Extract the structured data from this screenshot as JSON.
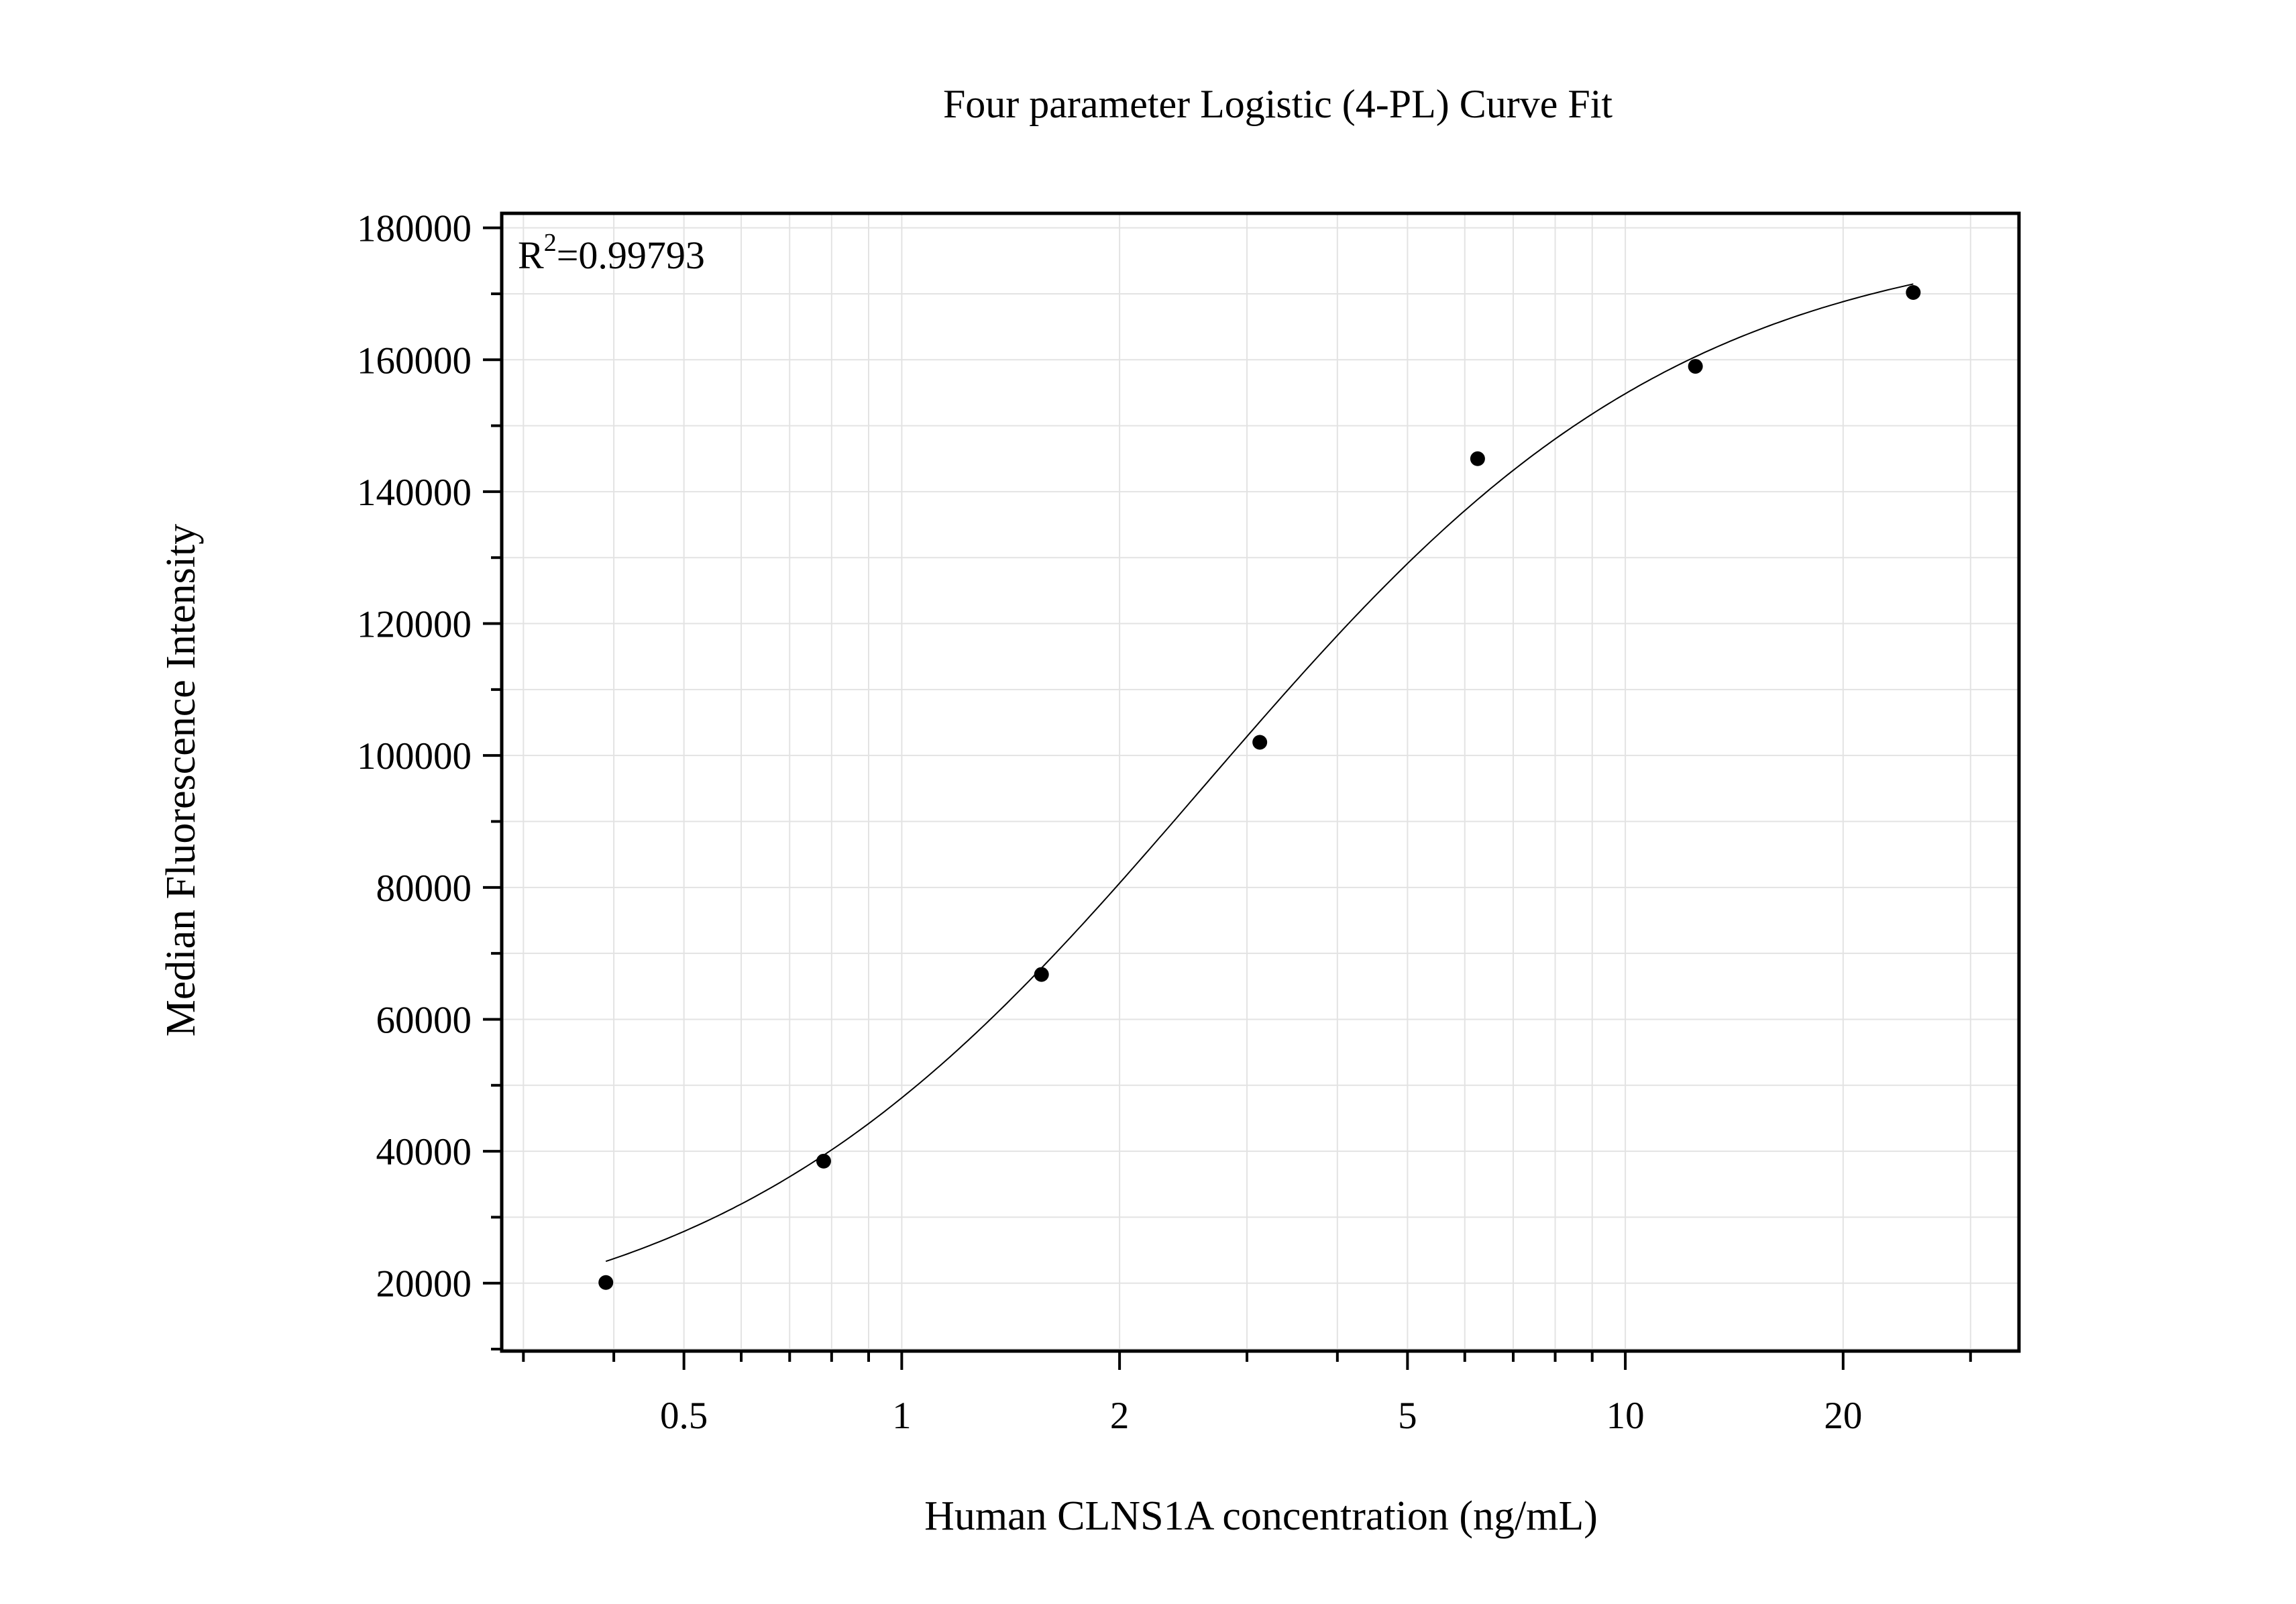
{
  "chart_data": {
    "type": "scatter",
    "title": "Four parameter Logistic (4-PL) Curve Fit",
    "xlabel": "Human CLNS1A concentration (ng/mL)",
    "ylabel": "Median Fluorescence Intensity",
    "annotation": {
      "base": "R",
      "sup": "2",
      "rest": "=0.99793"
    },
    "x_scale": "log",
    "xlim": [
      0.28,
      35
    ],
    "ylim": [
      9700,
      182200
    ],
    "x_ticks": [
      0.5,
      1,
      2,
      5,
      10,
      20
    ],
    "x_tick_labels": [
      "0.5",
      "1",
      "2",
      "5",
      "10",
      "20"
    ],
    "y_ticks": [
      20000,
      40000,
      60000,
      80000,
      100000,
      120000,
      140000,
      160000,
      180000
    ],
    "y_tick_labels": [
      "20000",
      "40000",
      "60000",
      "80000",
      "100000",
      "120000",
      "140000",
      "160000",
      "180000"
    ],
    "grid": true,
    "points": {
      "x": [
        0.39,
        0.78,
        1.56,
        3.125,
        6.25,
        12.5,
        25
      ],
      "y": [
        20100,
        38500,
        66800,
        102000,
        145000,
        159000,
        170200
      ]
    },
    "fit_curve": "4-PL",
    "colors": {
      "points": "#000000",
      "curve": "#000000",
      "grid": "#e3e3e3",
      "axis": "#000000"
    }
  }
}
